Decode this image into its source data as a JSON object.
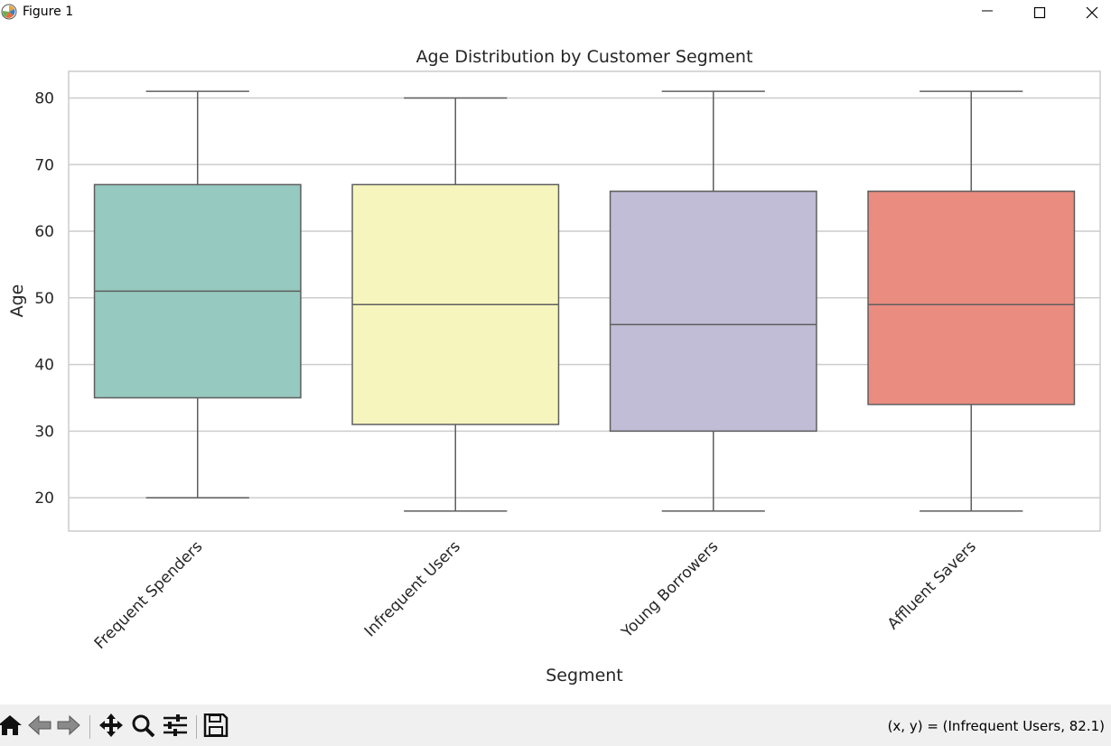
{
  "window": {
    "title": "Figure 1"
  },
  "status": {
    "coords": "(x, y) = (Infrequent Users, 82.1)"
  },
  "toolbar": {
    "buttons": [
      {
        "name": "home-button",
        "icon": "home-icon"
      },
      {
        "name": "back-button",
        "icon": "arrow-left-icon"
      },
      {
        "name": "forward-button",
        "icon": "arrow-right-icon"
      },
      {
        "name": "pan-button",
        "icon": "move-icon"
      },
      {
        "name": "zoom-button",
        "icon": "magnifier-icon"
      },
      {
        "name": "configure-subplots-button",
        "icon": "sliders-icon"
      },
      {
        "name": "save-button",
        "icon": "floppy-disk-icon"
      }
    ]
  },
  "chart_data": {
    "type": "box",
    "title": "Age Distribution by Customer Segment",
    "xlabel": "Segment",
    "ylabel": "Age",
    "ylim": [
      15,
      84
    ],
    "yticks": [
      20,
      30,
      40,
      50,
      60,
      70,
      80
    ],
    "grid": true,
    "categories": [
      "Frequent Spenders",
      "Infrequent Users",
      "Young Borrowers",
      "Affluent Savers"
    ],
    "boxes": [
      {
        "min": 20,
        "q1": 35,
        "median": 51,
        "q3": 67,
        "max": 81,
        "color": "#96c9bf"
      },
      {
        "min": 18,
        "q1": 31,
        "median": 49,
        "q3": 67,
        "max": 80,
        "color": "#f6f5bd"
      },
      {
        "min": 18,
        "q1": 30,
        "median": 46,
        "q3": 66,
        "max": 81,
        "color": "#c1bdd6"
      },
      {
        "min": 18,
        "q1": 34,
        "median": 49,
        "q3": 66,
        "max": 81,
        "color": "#ea8c80"
      }
    ]
  }
}
